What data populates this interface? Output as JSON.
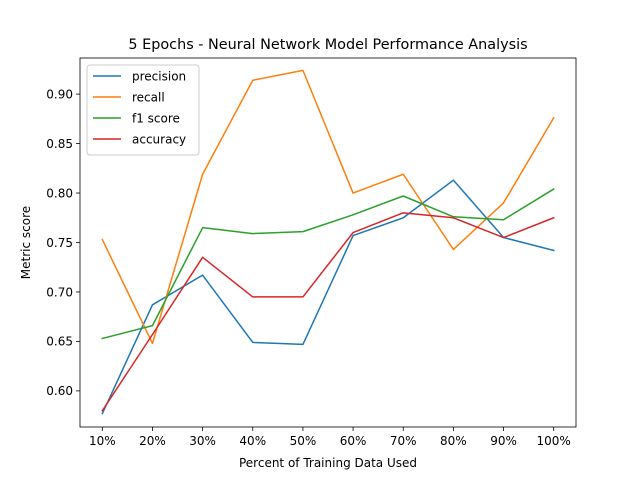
{
  "chart_data": {
    "type": "line",
    "title": "5 Epochs - Neural Network Model Performance Analysis",
    "xlabel": "Percent of Training Data Used",
    "ylabel": "Metric score",
    "categories": [
      "10%",
      "20%",
      "30%",
      "40%",
      "50%",
      "60%",
      "70%",
      "80%",
      "90%",
      "100%"
    ],
    "ylim": [
      0.5635,
      0.9365
    ],
    "yticks": [
      0.6,
      0.65,
      0.7,
      0.75,
      0.8,
      0.85,
      0.9
    ],
    "ytick_labels": [
      "0.60",
      "0.65",
      "0.70",
      "0.75",
      "0.80",
      "0.85",
      "0.90"
    ],
    "grid": false,
    "legend_position": "top-left",
    "series": [
      {
        "name": "precision",
        "color": "#1f77b4",
        "values": [
          0.577,
          0.687,
          0.717,
          0.649,
          0.647,
          0.757,
          0.775,
          0.813,
          0.755,
          0.742
        ]
      },
      {
        "name": "recall",
        "color": "#ff7f0e",
        "values": [
          0.753,
          0.648,
          0.819,
          0.914,
          0.924,
          0.8,
          0.819,
          0.743,
          0.79,
          0.876
        ]
      },
      {
        "name": "f1 score",
        "color": "#2ca02c",
        "values": [
          0.653,
          0.666,
          0.765,
          0.759,
          0.761,
          0.778,
          0.797,
          0.776,
          0.773,
          0.804
        ]
      },
      {
        "name": "accuracy",
        "color": "#d62728",
        "values": [
          0.58,
          0.657,
          0.735,
          0.695,
          0.695,
          0.76,
          0.78,
          0.775,
          0.755,
          0.775
        ]
      }
    ]
  }
}
